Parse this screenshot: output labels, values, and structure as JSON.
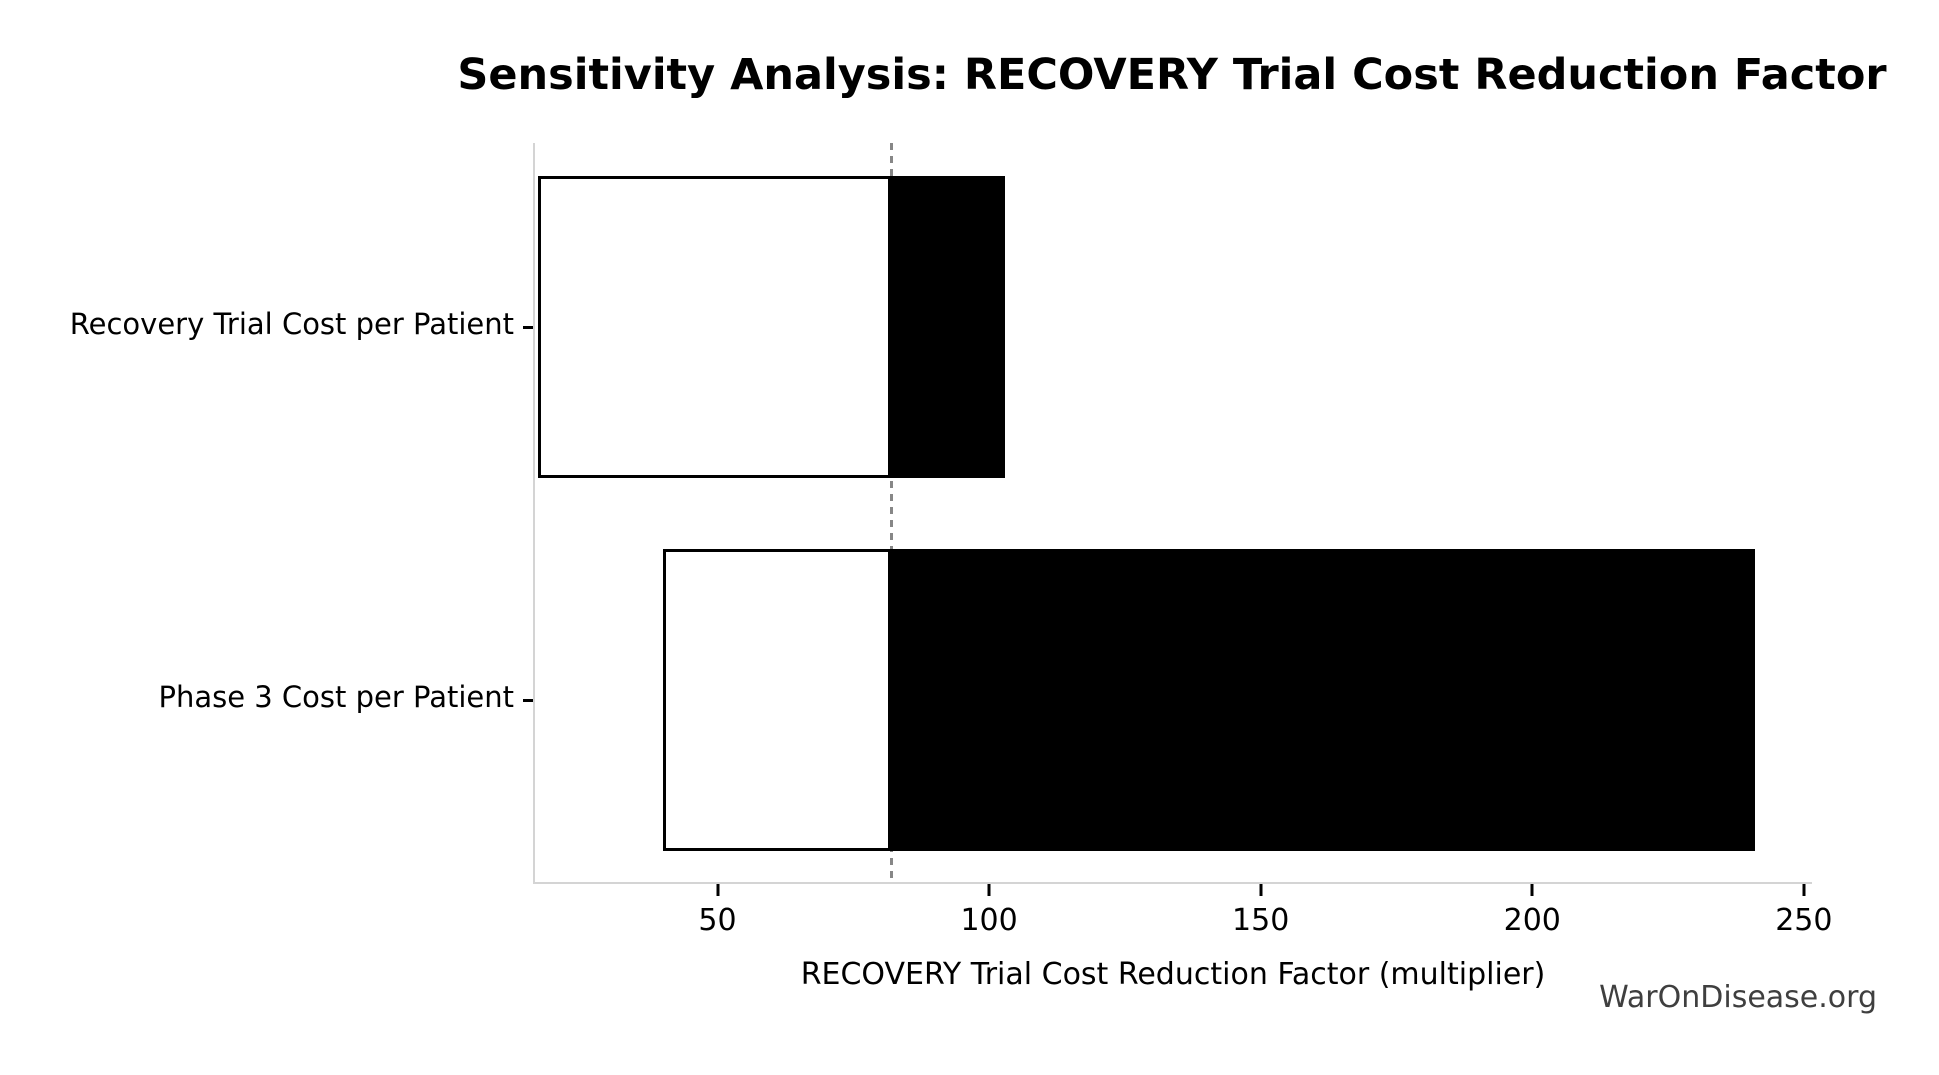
{
  "page": {
    "background": "#ffffff"
  },
  "watermark": "WarOnDisease.org",
  "chart_data": {
    "type": "bar",
    "orientation": "horizontal",
    "variant": "tornado-sensitivity",
    "title": "Sensitivity Analysis: RECOVERY Trial Cost Reduction Factor",
    "xlabel": "RECOVERY Trial Cost Reduction Factor (multiplier)",
    "ylabel": "",
    "categories": [
      "Recovery Trial Cost per Patient",
      "Phase 3 Cost per Patient"
    ],
    "series": [
      {
        "name": "Recovery Trial Cost per Patient",
        "low": 17,
        "high": 103
      },
      {
        "name": "Phase 3 Cost per Patient",
        "low": 40,
        "high": 241
      }
    ],
    "baseline": 82,
    "xticks": [
      50,
      100,
      150,
      200,
      250
    ],
    "xlim": [
      16.4,
      251.5
    ],
    "grid": false,
    "legend": false,
    "colors": {
      "bar_high_fill": "#000000",
      "bar_low_fill": "#ffffff",
      "bar_edge": "#000000",
      "baseline_line": "#878787",
      "spine": "#d4d4d4",
      "tick_mark": "#000000",
      "text": "#000000",
      "watermark": "#3f3f3f"
    }
  }
}
